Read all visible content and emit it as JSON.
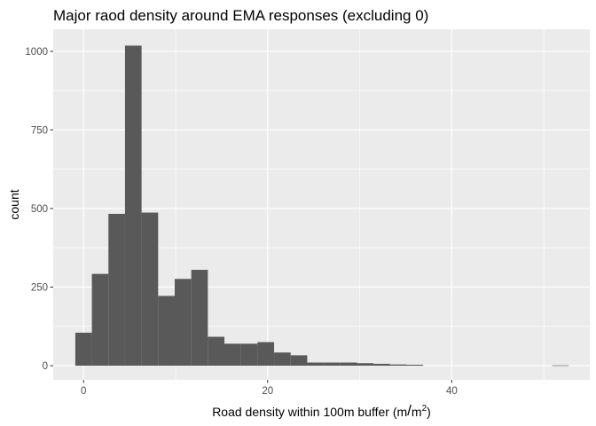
{
  "chart_data": {
    "type": "bar",
    "title": "Major raod density around EMA responses (excluding 0)",
    "xlabel": "Road density within 100m buffer (m/m²)",
    "xlabel_parts": {
      "main": "Road density within 100m buffer (m",
      "slash": "/",
      "base": "m",
      "sup": "2",
      "close": ")"
    },
    "ylabel": "count",
    "xlim": [
      -3.3,
      55
    ],
    "ylim": [
      -45,
      1070
    ],
    "x_ticks": [
      0,
      20,
      40
    ],
    "y_ticks": [
      0,
      250,
      500,
      750,
      1000
    ],
    "x_tick_labels": [
      "0",
      "20",
      "40"
    ],
    "y_tick_labels": [
      "0",
      "250",
      "500",
      "750",
      "1000"
    ],
    "grid": true,
    "panel_background": "#ebebeb",
    "grid_color": "#ffffff",
    "bar_color": "#595959",
    "bins": [
      {
        "x0": -0.9,
        "x1": 0.9,
        "count": 105
      },
      {
        "x0": 0.9,
        "x1": 2.7,
        "count": 292
      },
      {
        "x0": 2.7,
        "x1": 4.5,
        "count": 483
      },
      {
        "x0": 4.5,
        "x1": 6.3,
        "count": 1018
      },
      {
        "x0": 6.3,
        "x1": 8.1,
        "count": 487
      },
      {
        "x0": 8.1,
        "x1": 9.9,
        "count": 222
      },
      {
        "x0": 9.9,
        "x1": 11.7,
        "count": 276
      },
      {
        "x0": 11.7,
        "x1": 13.5,
        "count": 305
      },
      {
        "x0": 13.5,
        "x1": 15.3,
        "count": 92
      },
      {
        "x0": 15.3,
        "x1": 17.1,
        "count": 70
      },
      {
        "x0": 17.1,
        "x1": 18.9,
        "count": 70
      },
      {
        "x0": 18.9,
        "x1": 20.7,
        "count": 75
      },
      {
        "x0": 20.7,
        "x1": 22.5,
        "count": 42
      },
      {
        "x0": 22.5,
        "x1": 24.3,
        "count": 33
      },
      {
        "x0": 24.3,
        "x1": 26.1,
        "count": 10
      },
      {
        "x0": 26.1,
        "x1": 27.9,
        "count": 10
      },
      {
        "x0": 27.9,
        "x1": 29.7,
        "count": 10
      },
      {
        "x0": 29.7,
        "x1": 31.5,
        "count": 8
      },
      {
        "x0": 31.5,
        "x1": 33.3,
        "count": 6
      },
      {
        "x0": 33.3,
        "x1": 35.1,
        "count": 4
      },
      {
        "x0": 35.1,
        "x1": 36.9,
        "count": 3
      },
      {
        "x0": 50.9,
        "x1": 52.7,
        "count": 1
      }
    ]
  }
}
